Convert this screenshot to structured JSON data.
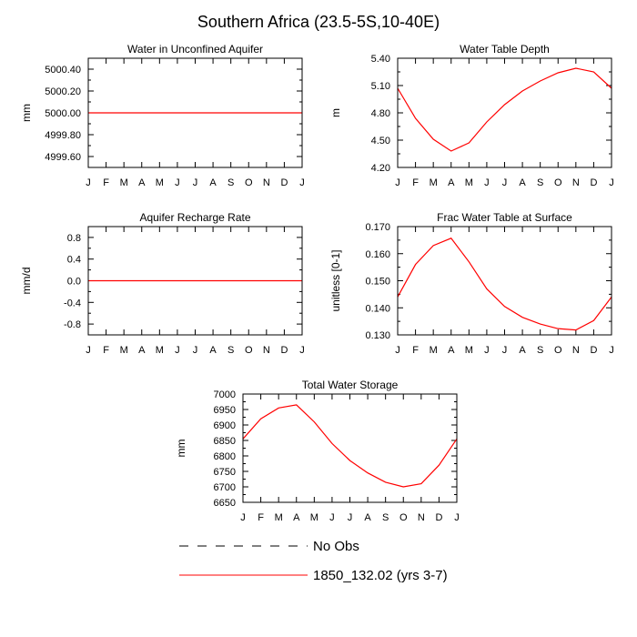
{
  "figure": {
    "title": "Southern Africa (23.5-5S,10-40E)"
  },
  "chart_data": [
    {
      "type": "line",
      "title": "Water in Unconfined Aquifer",
      "xlabel": "",
      "ylabel": "mm",
      "x": [
        "J",
        "F",
        "M",
        "A",
        "M",
        "J",
        "J",
        "A",
        "S",
        "O",
        "N",
        "D",
        "J"
      ],
      "ylim": [
        4999.5,
        5000.5
      ],
      "yticks": [
        4999.6,
        4999.8,
        5000.0,
        5000.2,
        5000.4
      ],
      "ytick_labels": [
        "4999.60",
        "4999.80",
        "5000.00",
        "5000.20",
        "5000.40"
      ],
      "series": [
        {
          "name": "1850_132.02 (yrs 3-7)",
          "color": "#ff0000",
          "values": [
            5000.0,
            5000.0,
            5000.0,
            5000.0,
            5000.0,
            5000.0,
            5000.0,
            5000.0,
            5000.0,
            5000.0,
            5000.0,
            5000.0,
            5000.0
          ]
        }
      ]
    },
    {
      "type": "line",
      "title": "Water Table Depth",
      "xlabel": "",
      "ylabel": "m",
      "x": [
        "J",
        "F",
        "M",
        "A",
        "M",
        "J",
        "J",
        "A",
        "S",
        "O",
        "N",
        "D",
        "J"
      ],
      "ylim": [
        4.2,
        5.4
      ],
      "yticks": [
        4.2,
        4.5,
        4.8,
        5.1,
        5.4
      ],
      "ytick_labels": [
        "4.20",
        "4.50",
        "4.80",
        "5.10",
        "5.40"
      ],
      "series": [
        {
          "name": "1850_132.02 (yrs 3-7)",
          "color": "#ff0000",
          "values": [
            5.07,
            4.74,
            4.51,
            4.38,
            4.47,
            4.7,
            4.89,
            5.04,
            5.15,
            5.24,
            5.29,
            5.25,
            5.07
          ]
        }
      ]
    },
    {
      "type": "line",
      "title": "Aquifer Recharge Rate",
      "xlabel": "",
      "ylabel": "mm/d",
      "x": [
        "J",
        "F",
        "M",
        "A",
        "M",
        "J",
        "J",
        "A",
        "S",
        "O",
        "N",
        "D",
        "J"
      ],
      "ylim": [
        -1.0,
        1.0
      ],
      "yticks": [
        -0.8,
        -0.4,
        0.0,
        0.4,
        0.8
      ],
      "ytick_labels": [
        "-0.8",
        "-0.4",
        "0.0",
        "0.4",
        "0.8"
      ],
      "series": [
        {
          "name": "1850_132.02 (yrs 3-7)",
          "color": "#ff0000",
          "values": [
            0,
            0,
            0,
            0,
            0,
            0,
            0,
            0,
            0,
            0,
            0,
            0,
            0
          ]
        }
      ]
    },
    {
      "type": "line",
      "title": "Frac Water Table at Surface",
      "xlabel": "",
      "ylabel": "unitless [0-1]",
      "x": [
        "J",
        "F",
        "M",
        "A",
        "M",
        "J",
        "J",
        "A",
        "S",
        "O",
        "N",
        "D",
        "J"
      ],
      "ylim": [
        0.13,
        0.17
      ],
      "yticks": [
        0.13,
        0.14,
        0.15,
        0.16,
        0.17
      ],
      "ytick_labels": [
        "0.130",
        "0.140",
        "0.150",
        "0.160",
        "0.170"
      ],
      "series": [
        {
          "name": "1850_132.02 (yrs 3-7)",
          "color": "#ff0000",
          "values": [
            0.144,
            0.156,
            0.163,
            0.1657,
            0.157,
            0.147,
            0.1405,
            0.1365,
            0.134,
            0.1323,
            0.1318,
            0.1353,
            0.144
          ]
        }
      ]
    },
    {
      "type": "line",
      "title": "Total Water Storage",
      "xlabel": "",
      "ylabel": "mm",
      "x": [
        "J",
        "F",
        "M",
        "A",
        "M",
        "J",
        "J",
        "A",
        "S",
        "O",
        "N",
        "D",
        "J"
      ],
      "ylim": [
        6650,
        7000
      ],
      "yticks": [
        6650,
        6700,
        6750,
        6800,
        6850,
        6900,
        6950,
        7000
      ],
      "ytick_labels": [
        "6650",
        "6700",
        "6750",
        "6800",
        "6850",
        "6900",
        "6950",
        "7000"
      ],
      "series": [
        {
          "name": "1850_132.02 (yrs 3-7)",
          "color": "#ff0000",
          "values": [
            6855,
            6920,
            6955,
            6965,
            6910,
            6840,
            6785,
            6745,
            6715,
            6700,
            6710,
            6770,
            6855
          ]
        }
      ]
    }
  ],
  "legend": {
    "items": [
      {
        "label": "No Obs",
        "style": "dashed",
        "color": "#000000"
      },
      {
        "label": "1850_132.02 (yrs 3-7)",
        "style": "solid",
        "color": "#ff0000"
      }
    ]
  }
}
